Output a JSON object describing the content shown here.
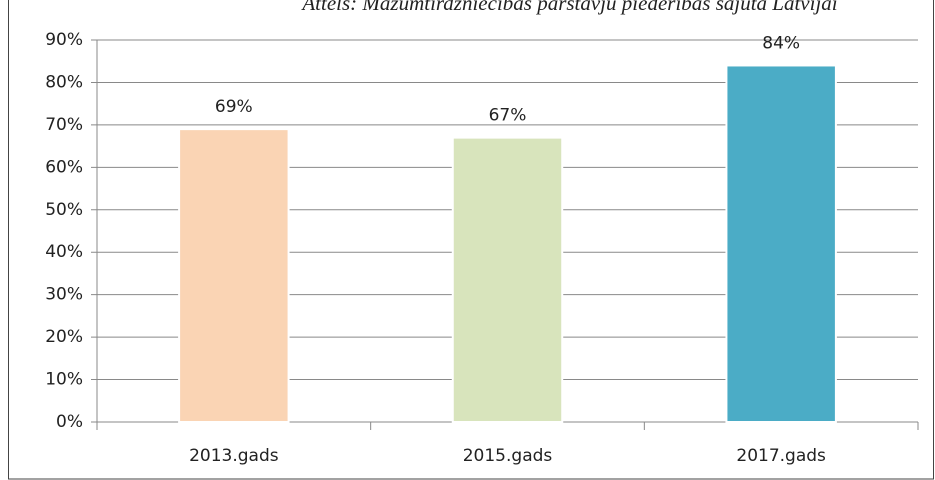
{
  "chart_data": {
    "type": "bar",
    "title": "Attēls: Mazumtirdzniecības pārstāvju piederības sajūta Latvijai",
    "categories": [
      "2013.gads",
      "2015.gads",
      "2017.gads"
    ],
    "values": [
      69,
      67,
      84
    ],
    "value_labels": [
      "69%",
      "67%",
      "84%"
    ],
    "colors": [
      "#fad4b4",
      "#d8e4bc",
      "#4bacc6"
    ],
    "ylim": [
      0,
      90
    ],
    "yticks": [
      {
        "value": 0,
        "label": "0%"
      },
      {
        "value": 10,
        "label": "10%"
      },
      {
        "value": 20,
        "label": "20%"
      },
      {
        "value": 30,
        "label": "30%"
      },
      {
        "value": 40,
        "label": "40%"
      },
      {
        "value": 50,
        "label": "50%"
      },
      {
        "value": 60,
        "label": "60%"
      },
      {
        "value": 70,
        "label": "70%"
      },
      {
        "value": 80,
        "label": "80%"
      },
      {
        "value": 90,
        "label": "90%"
      }
    ],
    "grid": true
  }
}
